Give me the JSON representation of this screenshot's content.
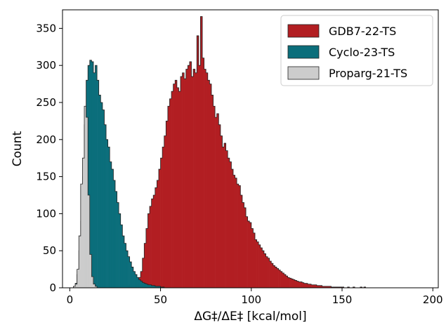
{
  "chart_data": {
    "type": "histogram",
    "xlabel": "ΔG‡/ΔE‡ [kcal/mol]",
    "ylabel": "Count",
    "xlim": [
      -4,
      203
    ],
    "ylim": [
      0,
      375
    ],
    "xticks": [
      0,
      50,
      100,
      150,
      200
    ],
    "yticks": [
      0,
      50,
      100,
      150,
      200,
      250,
      300,
      350
    ],
    "grid": false,
    "legend_position": "top-right",
    "bin_width": 1,
    "series": [
      {
        "name": "GDB7-22-TS",
        "color": "#b21e22",
        "start": 28,
        "counts": [
          1,
          1,
          2,
          3,
          3,
          4,
          5,
          5,
          8,
          10,
          14,
          22,
          40,
          60,
          80,
          100,
          110,
          120,
          125,
          135,
          145,
          160,
          175,
          190,
          205,
          225,
          245,
          255,
          265,
          275,
          280,
          270,
          265,
          285,
          290,
          282,
          295,
          300,
          305,
          285,
          295,
          290,
          340,
          300,
          366,
          310,
          295,
          290,
          280,
          275,
          260,
          245,
          230,
          235,
          220,
          205,
          190,
          195,
          185,
          175,
          170,
          160,
          152,
          148,
          140,
          138,
          125,
          115,
          108,
          96,
          90,
          88,
          80,
          74,
          65,
          62,
          58,
          54,
          50,
          46,
          42,
          40,
          36,
          33,
          30,
          28,
          26,
          24,
          22,
          20,
          18,
          16,
          14,
          13,
          12,
          11,
          10,
          9,
          8,
          8,
          7,
          6,
          6,
          5,
          5,
          4,
          4,
          4,
          3,
          3,
          3,
          2,
          2,
          2,
          2,
          2,
          1,
          1,
          1,
          1,
          1,
          1,
          1,
          0,
          0,
          1,
          0,
          0,
          1,
          0,
          0,
          0,
          1,
          0,
          1
        ]
      },
      {
        "name": "Cyclo-23-TS",
        "color": "#0b6e7b",
        "start": 2,
        "counts": [
          2,
          6,
          18,
          50,
          90,
          150,
          220,
          280,
          300,
          307,
          305,
          290,
          300,
          280,
          260,
          250,
          240,
          220,
          200,
          190,
          170,
          160,
          145,
          130,
          115,
          100,
          85,
          70,
          60,
          50,
          42,
          35,
          28,
          22,
          18,
          14,
          11,
          9,
          7,
          6,
          5,
          4,
          4,
          3,
          3,
          2,
          2,
          2,
          1,
          1
        ]
      },
      {
        "name": "Proparg-21-TS",
        "color": "#cccccc",
        "start": 2,
        "counts": [
          2,
          5,
          25,
          70,
          140,
          175,
          245,
          230,
          125,
          45,
          15,
          5,
          2
        ]
      }
    ]
  }
}
